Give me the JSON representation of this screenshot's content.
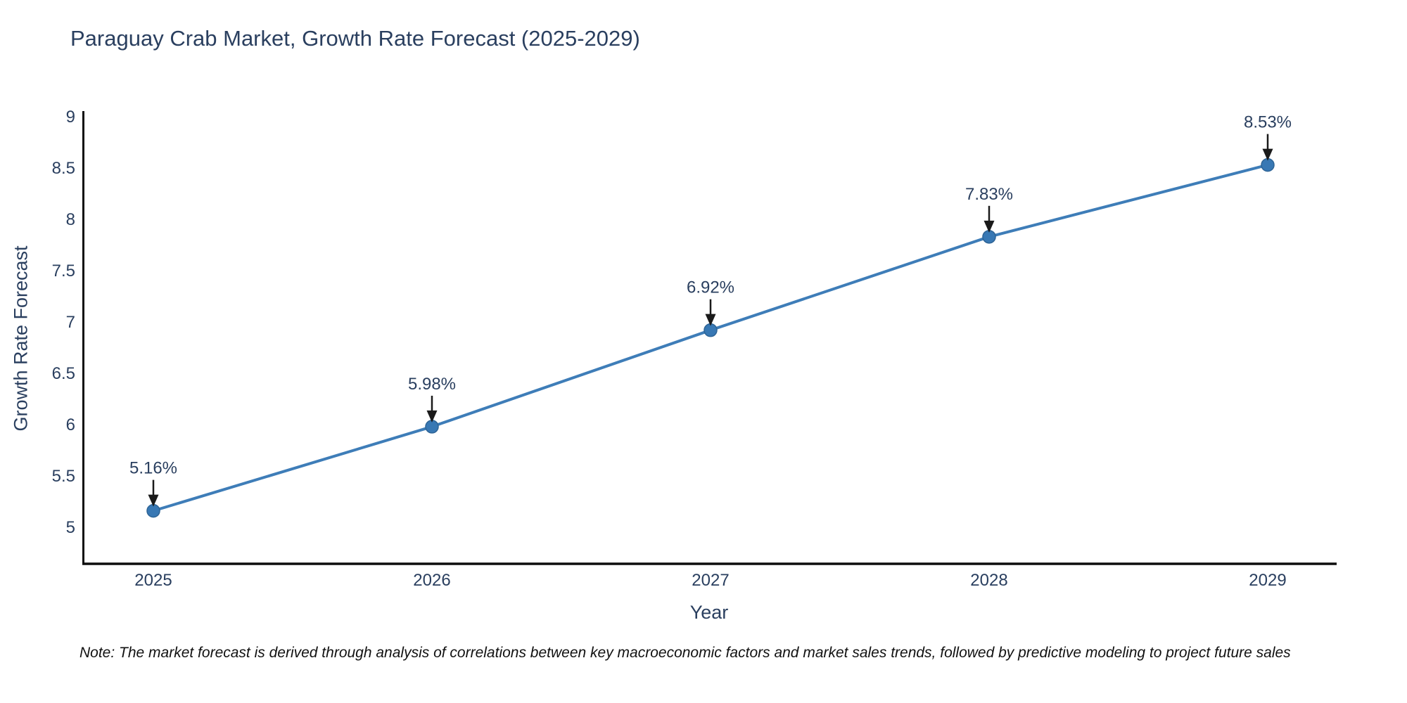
{
  "chart_data": {
    "type": "line",
    "title": "Paraguay Crab Market, Growth Rate Forecast (2025-2029)",
    "xlabel": "Year",
    "ylabel": "Growth Rate Forecast",
    "categories": [
      2025,
      2026,
      2027,
      2028,
      2029
    ],
    "series": [
      {
        "name": "Growth Rate Forecast",
        "values": [
          5.16,
          5.98,
          6.92,
          7.83,
          8.53
        ],
        "point_labels": [
          "5.16%",
          "5.98%",
          "6.92%",
          "7.83%",
          "8.53%"
        ]
      }
    ],
    "yticks": [
      5,
      5.5,
      6,
      6.5,
      7,
      7.5,
      8,
      8.5,
      9
    ],
    "ylim": [
      4.64,
      9.05
    ],
    "xlim": [
      2024.75,
      2029.25
    ],
    "grid": false,
    "legend": false,
    "annotation_style": "label-with-down-arrow-at-each-point",
    "colors": {
      "line": "#3e7db8",
      "marker_fill": "#3878b4",
      "marker_edge": "#2e6496",
      "axis_line": "#0d0d0d",
      "arrow": "#1a1a1a",
      "text": "#2a3f5f",
      "note_text": "#111111"
    },
    "note": "Note: The market forecast is derived through analysis of correlations between key macroeconomic factors and market sales trends, followed by predictive modeling to project future sales"
  }
}
